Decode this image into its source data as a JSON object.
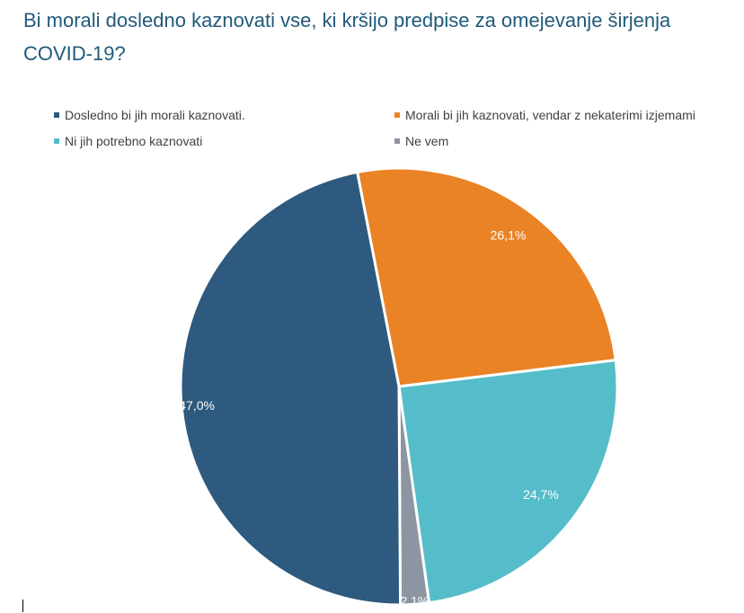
{
  "title": "Bi morali dosledno kaznovati vse, ki kršijo predpise za omejevanje širjenja COVID-19?",
  "chart_data": {
    "type": "pie",
    "title": "Bi morali dosledno kaznovati vse, ki kršijo predpise za omejevanje širjenja COVID-19?",
    "categories": [
      "Dosledno bi jih morali kaznovati.",
      "Morali bi jih kaznovati, vendar z nekaterimi izjemami",
      "Ni jih potrebno kaznovati",
      "Ne vem"
    ],
    "values": [
      47.0,
      26.1,
      24.7,
      2.1
    ],
    "labels": [
      "47,0%",
      "26,1%",
      "24,7%",
      "2,1%"
    ],
    "colors": [
      "#2d5a7e",
      "#ea8325",
      "#55bdc9",
      "#8e95a2"
    ],
    "legend_position": "top"
  }
}
